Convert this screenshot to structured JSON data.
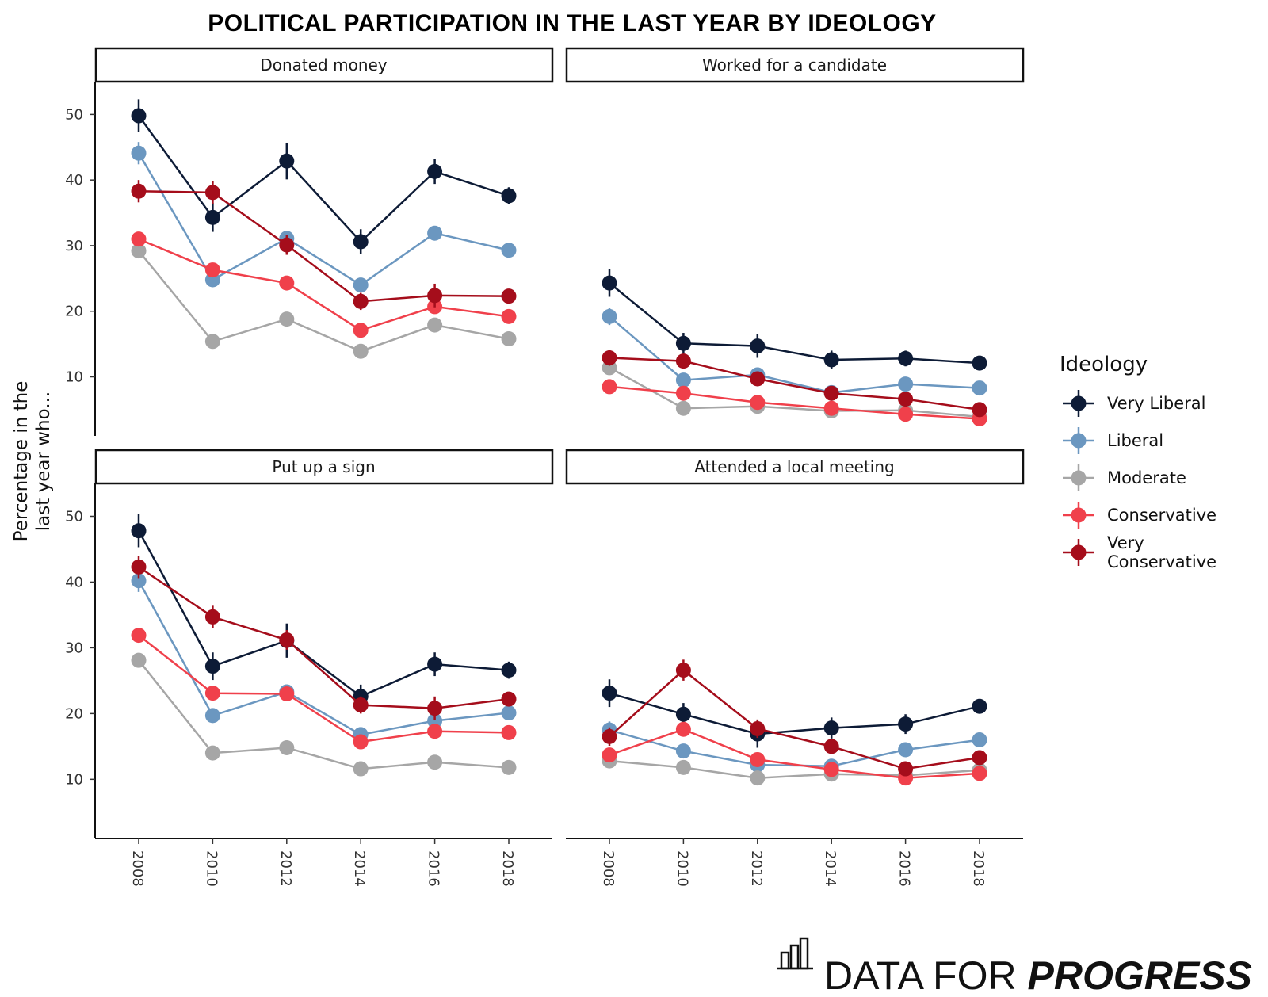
{
  "chart_data": {
    "type": "line",
    "title": "POLITICAL PARTICIPATION IN THE LAST YEAR BY IDEOLOGY",
    "ylabel": [
      "Percentage in the",
      "last year who..."
    ],
    "xlabel": "",
    "x": [
      "2008",
      "2010",
      "2012",
      "2014",
      "2016",
      "2018"
    ],
    "y_ticks": [
      10,
      20,
      30,
      40,
      50
    ],
    "ylim": [
      1,
      55
    ],
    "error_bars": true,
    "legend": {
      "title": "Ideology",
      "position": "right"
    },
    "series_meta": [
      {
        "name": "Very Liberal",
        "label_lines": [
          "Very Liberal"
        ],
        "color": "#0d1b36"
      },
      {
        "name": "Liberal",
        "label_lines": [
          "Liberal"
        ],
        "color": "#6b97c0"
      },
      {
        "name": "Moderate",
        "label_lines": [
          "Moderate"
        ],
        "color": "#a6a6a6"
      },
      {
        "name": "Conservative",
        "label_lines": [
          "Conservative"
        ],
        "color": "#f0404b"
      },
      {
        "name": "Very Conservative",
        "label_lines": [
          "Very",
          "Conservative"
        ],
        "color": "#a50d1b"
      }
    ],
    "panels": [
      {
        "title": "Donated money",
        "series": [
          {
            "name": "Very Liberal",
            "values": [
              49.8,
              34.3,
              42.9,
              30.6,
              41.3,
              37.6
            ],
            "errors": [
              2.5,
              2.2,
              2.8,
              1.9,
              1.9,
              1.3
            ]
          },
          {
            "name": "Liberal",
            "values": [
              44.1,
              24.8,
              31.1,
              24.0,
              31.9,
              29.3
            ],
            "errors": [
              1.7,
              0.9,
              1.1,
              0.8,
              0.9,
              0.7
            ]
          },
          {
            "name": "Moderate",
            "values": [
              29.2,
              15.4,
              18.8,
              13.9,
              17.9,
              15.8
            ],
            "errors": [
              0.7,
              0.4,
              0.5,
              0.4,
              0.5,
              0.4
            ]
          },
          {
            "name": "Conservative",
            "values": [
              31.0,
              26.3,
              24.3,
              17.1,
              20.7,
              19.2
            ],
            "errors": [
              1.1,
              0.8,
              0.8,
              0.6,
              0.8,
              0.6
            ]
          },
          {
            "name": "Very Conservative",
            "values": [
              38.3,
              38.1,
              30.1,
              21.5,
              22.4,
              22.3
            ],
            "errors": [
              1.7,
              1.7,
              1.5,
              1.3,
              1.8,
              1.0
            ]
          }
        ]
      },
      {
        "title": "Worked for a candidate",
        "series": [
          {
            "name": "Very Liberal",
            "values": [
              24.3,
              15.1,
              14.7,
              12.6,
              12.8,
              12.1
            ],
            "errors": [
              2.1,
              1.6,
              1.8,
              1.4,
              1.2,
              0.9
            ]
          },
          {
            "name": "Liberal",
            "values": [
              19.2,
              9.5,
              10.3,
              7.6,
              8.9,
              8.3
            ],
            "errors": [
              1.3,
              0.8,
              0.9,
              0.6,
              0.6,
              0.5
            ]
          },
          {
            "name": "Moderate",
            "values": [
              11.4,
              5.2,
              5.5,
              4.8,
              4.9,
              3.9
            ],
            "errors": [
              0.8,
              0.4,
              0.4,
              0.3,
              0.3,
              0.3
            ]
          },
          {
            "name": "Conservative",
            "values": [
              8.5,
              7.5,
              6.1,
              5.2,
              4.3,
              3.6
            ],
            "errors": [
              0.8,
              0.6,
              0.5,
              0.4,
              0.4,
              0.3
            ]
          },
          {
            "name": "Very Conservative",
            "values": [
              12.9,
              12.4,
              9.7,
              7.5,
              6.6,
              5.0
            ],
            "errors": [
              1.2,
              1.1,
              1.0,
              0.8,
              0.9,
              0.6
            ]
          }
        ]
      },
      {
        "title": "Put up a sign",
        "series": [
          {
            "name": "Very Liberal",
            "values": [
              47.8,
              27.2,
              31.1,
              22.6,
              27.5,
              26.6
            ],
            "errors": [
              2.5,
              2.1,
              2.6,
              1.8,
              1.8,
              1.3
            ]
          },
          {
            "name": "Liberal",
            "values": [
              40.2,
              19.7,
              23.3,
              16.8,
              18.9,
              20.1
            ],
            "errors": [
              1.7,
              0.9,
              1.1,
              0.8,
              0.9,
              0.7
            ]
          },
          {
            "name": "Moderate",
            "values": [
              28.1,
              14.0,
              14.8,
              11.6,
              12.6,
              11.8
            ],
            "errors": [
              0.7,
              0.4,
              0.5,
              0.4,
              0.5,
              0.4
            ]
          },
          {
            "name": "Conservative",
            "values": [
              31.9,
              23.1,
              23.0,
              15.7,
              17.3,
              17.1
            ],
            "errors": [
              1.1,
              0.8,
              0.8,
              0.6,
              0.8,
              0.6
            ]
          },
          {
            "name": "Very Conservative",
            "values": [
              42.3,
              34.7,
              31.2,
              21.3,
              20.8,
              22.2
            ],
            "errors": [
              1.7,
              1.7,
              1.5,
              1.3,
              1.8,
              1.0
            ]
          }
        ]
      },
      {
        "title": "Attended a local meeting",
        "series": [
          {
            "name": "Very Liberal",
            "values": [
              23.1,
              19.9,
              16.9,
              17.8,
              18.4,
              21.1
            ],
            "errors": [
              2.1,
              1.7,
              2.1,
              1.6,
              1.5,
              1.1
            ]
          },
          {
            "name": "Liberal",
            "values": [
              17.5,
              14.3,
              12.2,
              12.0,
              14.5,
              16.0
            ],
            "errors": [
              1.3,
              0.9,
              0.9,
              0.7,
              0.7,
              0.6
            ]
          },
          {
            "name": "Moderate",
            "values": [
              12.8,
              11.8,
              10.2,
              10.8,
              10.6,
              11.4
            ],
            "errors": [
              0.8,
              0.5,
              0.5,
              0.4,
              0.4,
              0.4
            ]
          },
          {
            "name": "Conservative",
            "values": [
              13.7,
              17.6,
              13.0,
              11.5,
              10.2,
              10.9
            ],
            "errors": [
              0.9,
              0.9,
              0.7,
              0.6,
              0.6,
              0.5
            ]
          },
          {
            "name": "Very Conservative",
            "values": [
              16.5,
              26.6,
              17.7,
              15.0,
              11.6,
              13.3
            ],
            "errors": [
              1.4,
              1.6,
              1.4,
              1.2,
              1.1,
              0.9
            ]
          }
        ]
      }
    ]
  },
  "brand": {
    "logo_icon": "bar-chart-icon",
    "text_regular": "DATA FOR ",
    "text_bold": "PROGRESS"
  }
}
